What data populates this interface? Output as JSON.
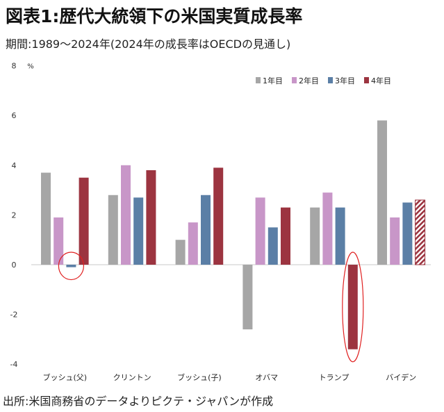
{
  "header": {
    "title": "図表1:歴代大統領下の米国実質成長率",
    "subtitle": "期間:1989～2024年(2024年の成長率はOECDの見通し)"
  },
  "footer": {
    "source": "出所:米国商務省のデータよりピクテ・ジャパンが作成"
  },
  "chart_data": {
    "type": "bar",
    "title": "",
    "xlabel": "",
    "ylabel": "%",
    "ylim": [
      -4,
      8
    ],
    "yticks": [
      -4,
      -2,
      0,
      2,
      4,
      6,
      8
    ],
    "y_tick_labels": [
      "-4",
      "-2",
      "0",
      "2",
      "4",
      "6",
      "8"
    ],
    "categories": [
      "ブッシュ(父)",
      "クリントン",
      "ブッシュ(子)",
      "オバマ",
      "トランプ",
      "バイデン"
    ],
    "series": [
      {
        "name": "1年目",
        "color": "#a6a6a6",
        "values": [
          3.7,
          2.8,
          1.0,
          -2.6,
          2.3,
          5.8
        ]
      },
      {
        "name": "2年目",
        "color": "#c896c8",
        "values": [
          1.9,
          4.0,
          1.7,
          2.7,
          2.9,
          1.9
        ]
      },
      {
        "name": "3年目",
        "color": "#5b7fa6",
        "values": [
          -0.1,
          2.7,
          2.8,
          1.5,
          2.3,
          2.5
        ]
      },
      {
        "name": "4年目",
        "color": "#9c3440",
        "values": [
          3.5,
          3.8,
          3.9,
          2.3,
          -3.4,
          2.6
        ]
      }
    ],
    "legend_position": "top-right",
    "grid": false,
    "hatched_bar": {
      "category": "バイデン",
      "series": "4年目"
    },
    "highlight_circles": [
      {
        "category": "ブッシュ(父)",
        "series": "3年目"
      },
      {
        "category": "トランプ",
        "series": "4年目"
      }
    ],
    "highlight_color": "#e02020"
  }
}
